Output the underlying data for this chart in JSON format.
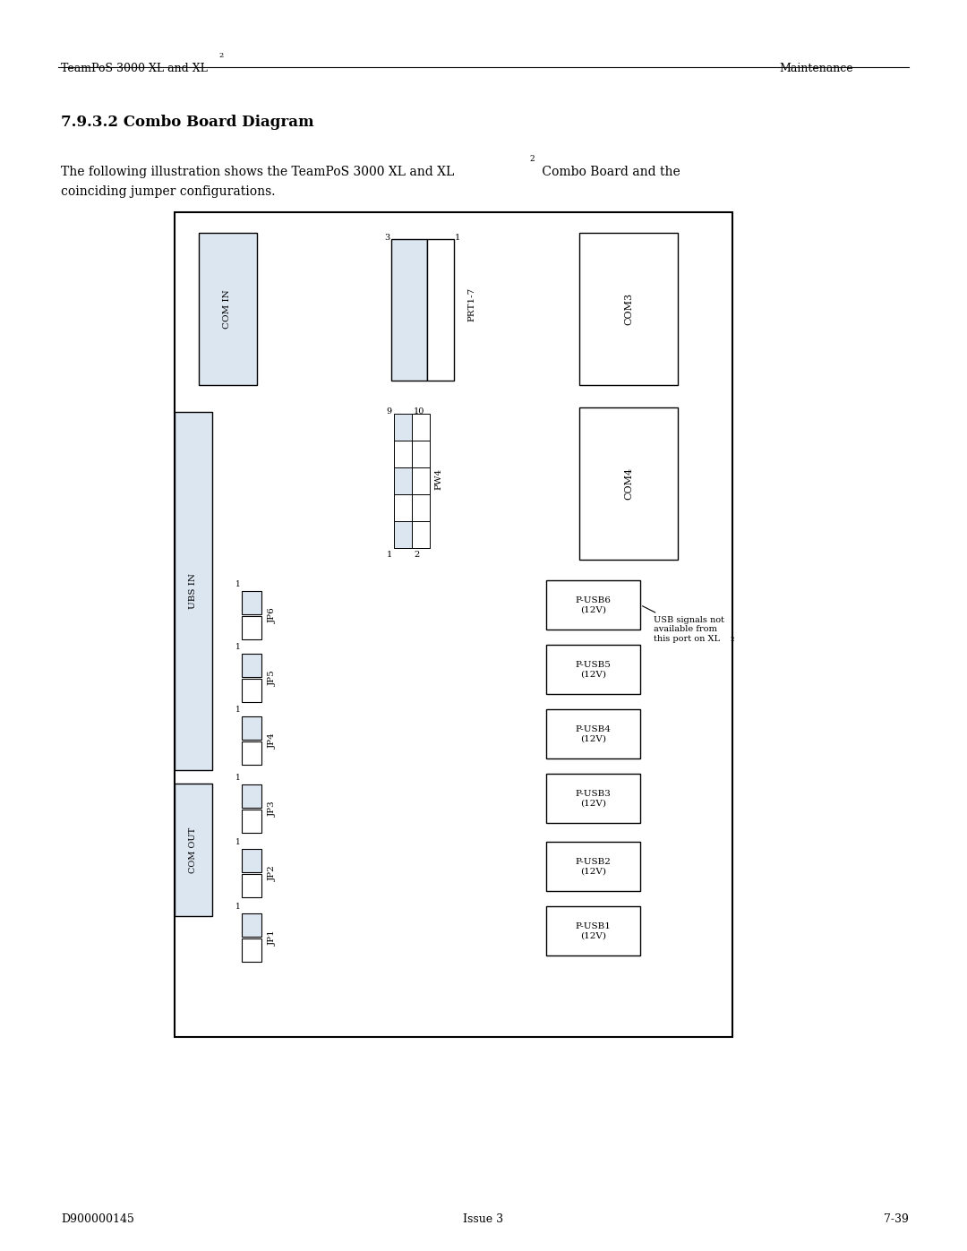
{
  "page_title_left": "TeamPoS 3000 XL and XL",
  "page_title_right": "Maintenance",
  "section_title": "7.9.3.2 Combo Board Diagram",
  "footer_left": "D900000145",
  "footer_center": "Issue 3",
  "footer_right": "7-39",
  "bg_color": "#ffffff",
  "box_fill_light": "#dce6f1",
  "box_fill_white": "#ffffff"
}
